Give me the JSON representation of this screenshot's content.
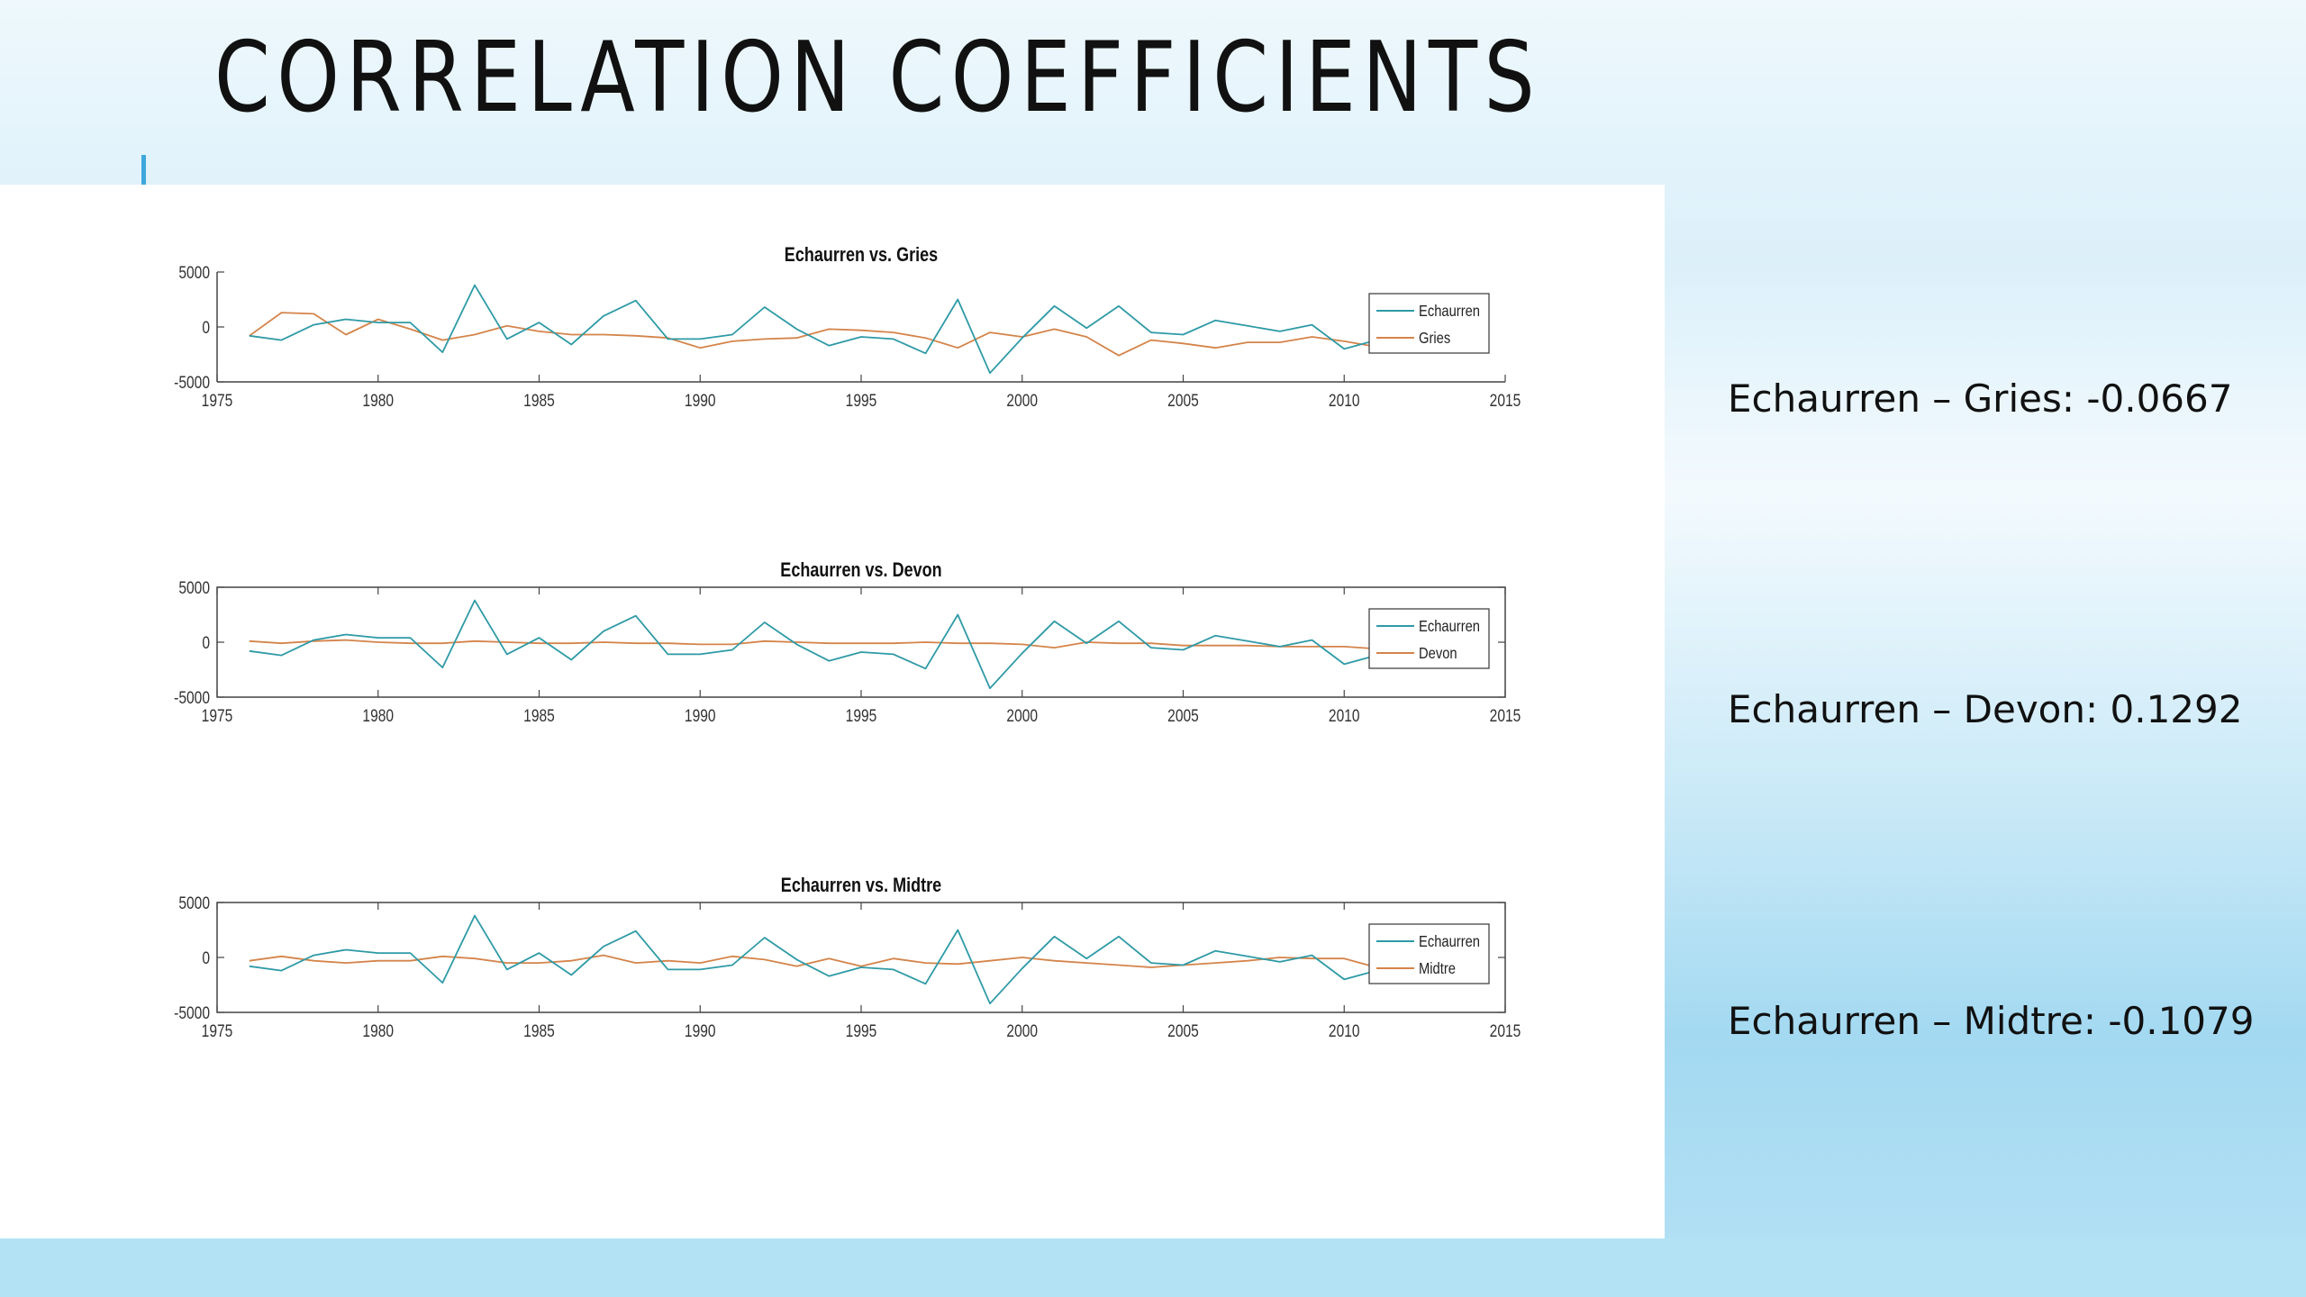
{
  "slide": {
    "title": "CORRELATION COEFFICIENTS",
    "correlations": [
      "Echaurren – Gries: -0.0667",
      "Echaurren – Devon: 0.1292",
      "Echaurren – Midtre: -0.1079"
    ]
  },
  "colors": {
    "echaurren": "#2e9aa6",
    "comparison": "#d4844a",
    "accent": "#3ea7dc"
  },
  "chart_data": [
    {
      "type": "line",
      "title": "Echaurren vs. Gries",
      "xlim": [
        1975,
        2015
      ],
      "ylim": [
        -5000,
        5000
      ],
      "xticks": [
        1975,
        1980,
        1985,
        1990,
        1995,
        2000,
        2005,
        2010,
        2015
      ],
      "yticks": [
        -5000,
        0,
        5000
      ],
      "legend_position": "top-right",
      "x": [
        1976,
        1977,
        1978,
        1979,
        1980,
        1981,
        1982,
        1983,
        1984,
        1985,
        1986,
        1987,
        1988,
        1989,
        1990,
        1991,
        1992,
        1993,
        1994,
        1995,
        1996,
        1997,
        1998,
        1999,
        2000,
        2001,
        2002,
        2003,
        2004,
        2005,
        2006,
        2007,
        2008,
        2009,
        2010,
        2011,
        2012,
        2013,
        2014
      ],
      "series": [
        {
          "name": "Echaurren",
          "values": [
            -800,
            -1200,
            200,
            700,
            400,
            400,
            -2300,
            3800,
            -1100,
            400,
            -1600,
            1000,
            2400,
            -1100,
            -1100,
            -700,
            1800,
            -200,
            -1700,
            -900,
            -1100,
            -2400,
            2500,
            -4200,
            -1000,
            1900,
            -100,
            1900,
            -500,
            -700,
            600,
            100,
            -400,
            200,
            -2000,
            -1200,
            -2300,
            -900,
            -800
          ]
        },
        {
          "name": "Gries",
          "values": [
            -800,
            1300,
            1200,
            -700,
            700,
            -200,
            -1200,
            -700,
            100,
            -400,
            -700,
            -700,
            -800,
            -1000,
            -1900,
            -1300,
            -1100,
            -1000,
            -200,
            -300,
            -500,
            -1000,
            -1900,
            -500,
            -900,
            -200,
            -900,
            -2600,
            -1200,
            -1500,
            -1900,
            -1400,
            -1400,
            -900,
            -1300,
            -1800,
            -1900,
            -500,
            -600
          ]
        }
      ]
    },
    {
      "type": "line",
      "title": "Echaurren vs. Devon",
      "xlim": [
        1975,
        2015
      ],
      "ylim": [
        -5000,
        5000
      ],
      "xticks": [
        1975,
        1980,
        1985,
        1990,
        1995,
        2000,
        2005,
        2010,
        2015
      ],
      "yticks": [
        -5000,
        0,
        5000
      ],
      "legend_position": "top-right",
      "x": [
        1976,
        1977,
        1978,
        1979,
        1980,
        1981,
        1982,
        1983,
        1984,
        1985,
        1986,
        1987,
        1988,
        1989,
        1990,
        1991,
        1992,
        1993,
        1994,
        1995,
        1996,
        1997,
        1998,
        1999,
        2000,
        2001,
        2002,
        2003,
        2004,
        2005,
        2006,
        2007,
        2008,
        2009,
        2010,
        2011,
        2012,
        2013,
        2014
      ],
      "series": [
        {
          "name": "Echaurren",
          "values": [
            -800,
            -1200,
            200,
            700,
            400,
            400,
            -2300,
            3800,
            -1100,
            400,
            -1600,
            1000,
            2400,
            -1100,
            -1100,
            -700,
            1800,
            -200,
            -1700,
            -900,
            -1100,
            -2400,
            2500,
            -4200,
            -1000,
            1900,
            -100,
            1900,
            -500,
            -700,
            600,
            100,
            -400,
            200,
            -2000,
            -1200,
            -2300,
            -900,
            -800
          ]
        },
        {
          "name": "Devon",
          "values": [
            100,
            -100,
            100,
            200,
            0,
            -100,
            -100,
            100,
            0,
            -100,
            -100,
            0,
            -100,
            -100,
            -200,
            -200,
            100,
            0,
            -100,
            -100,
            -100,
            0,
            -100,
            -100,
            -200,
            -500,
            0,
            -100,
            -100,
            -300,
            -300,
            -300,
            -400,
            -400,
            -400,
            -600,
            -400,
            -100,
            -200
          ]
        }
      ]
    },
    {
      "type": "line",
      "title": "Echaurren vs. Midtre",
      "xlim": [
        1975,
        2015
      ],
      "ylim": [
        -5000,
        5000
      ],
      "xticks": [
        1975,
        1980,
        1985,
        1990,
        1995,
        2000,
        2005,
        2010,
        2015
      ],
      "yticks": [
        -5000,
        0,
        5000
      ],
      "legend_position": "top-right",
      "x": [
        1976,
        1977,
        1978,
        1979,
        1980,
        1981,
        1982,
        1983,
        1984,
        1985,
        1986,
        1987,
        1988,
        1989,
        1990,
        1991,
        1992,
        1993,
        1994,
        1995,
        1996,
        1997,
        1998,
        1999,
        2000,
        2001,
        2002,
        2003,
        2004,
        2005,
        2006,
        2007,
        2008,
        2009,
        2010,
        2011,
        2012,
        2013,
        2014
      ],
      "series": [
        {
          "name": "Echaurren",
          "values": [
            -800,
            -1200,
            200,
            700,
            400,
            400,
            -2300,
            3800,
            -1100,
            400,
            -1600,
            1000,
            2400,
            -1100,
            -1100,
            -700,
            1800,
            -200,
            -1700,
            -900,
            -1100,
            -2400,
            2500,
            -4200,
            -1000,
            1900,
            -100,
            1900,
            -500,
            -700,
            600,
            100,
            -400,
            200,
            -2000,
            -1200,
            -2300,
            -900,
            -800
          ]
        },
        {
          "name": "Midtre",
          "values": [
            -300,
            100,
            -300,
            -500,
            -300,
            -300,
            100,
            -100,
            -500,
            -500,
            -300,
            200,
            -500,
            -300,
            -500,
            100,
            -200,
            -800,
            -100,
            -800,
            -100,
            -500,
            -600,
            -300,
            0,
            -300,
            -500,
            -700,
            -900,
            -700,
            -500,
            -300,
            0,
            -100,
            -100,
            -900,
            -200,
            -900,
            0
          ]
        }
      ]
    }
  ]
}
